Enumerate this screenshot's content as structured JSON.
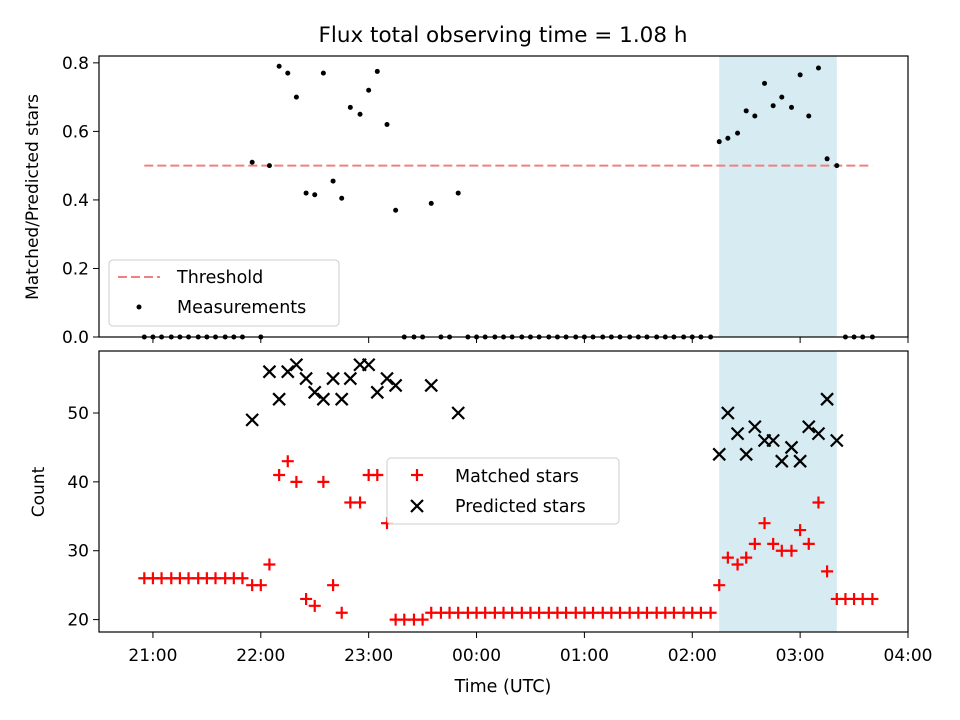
{
  "figure": {
    "title": "Flux total observing time = 1.08 h",
    "xlabel": "Time (UTC)",
    "x_ticks": [
      "21:00",
      "22:00",
      "23:00",
      "00:00",
      "01:00",
      "02:00",
      "03:00",
      "04:00"
    ]
  },
  "chart_data": [
    {
      "type": "scatter",
      "panel": "top",
      "title": "Flux total observing time = 1.08 h",
      "ylabel": "Matched/Predicted stars",
      "ylim": [
        0,
        0.82
      ],
      "y_ticks": [
        "0.0",
        "0.2",
        "0.4",
        "0.6",
        "0.8"
      ],
      "xlim_hours": [
        20.5,
        28.0
      ],
      "x_unit": "hours UTC (values above 24 are after midnight)",
      "highlight_span_hours": [
        26.25,
        27.34
      ],
      "highlight_color": "#add8e6",
      "threshold": {
        "name": "Threshold",
        "value": 0.5,
        "x_range_hours": [
          20.92,
          27.67
        ],
        "color": "#f08080",
        "style": "dashed"
      },
      "legend": {
        "placement": "lower-left",
        "entries": [
          "Threshold",
          "Measurements"
        ]
      },
      "series": [
        {
          "name": "Measurements",
          "color": "#000000",
          "marker": "dot",
          "x": [
            20.92,
            21.0,
            21.08,
            21.17,
            21.25,
            21.33,
            21.42,
            21.5,
            21.58,
            21.67,
            21.75,
            21.83,
            21.92,
            22.0,
            22.08,
            22.17,
            22.25,
            22.33,
            22.42,
            22.5,
            22.58,
            22.67,
            22.75,
            22.83,
            22.92,
            23.0,
            23.08,
            23.17,
            23.25,
            23.33,
            23.42,
            23.5,
            23.58,
            23.67,
            23.75,
            23.83,
            23.92,
            24.0,
            24.08,
            24.17,
            24.25,
            24.33,
            24.42,
            24.5,
            24.58,
            24.67,
            24.75,
            24.83,
            24.92,
            25.0,
            25.08,
            25.17,
            25.25,
            25.33,
            25.42,
            25.5,
            25.58,
            25.67,
            25.75,
            25.83,
            25.92,
            26.0,
            26.08,
            26.17,
            26.25,
            26.33,
            26.42,
            26.5,
            26.58,
            26.67,
            26.75,
            26.83,
            26.92,
            27.0,
            27.08,
            27.17,
            27.25,
            27.34,
            27.42,
            27.5,
            27.58,
            27.67
          ],
          "y": [
            0,
            0,
            0,
            0,
            0,
            0,
            0,
            0,
            0,
            0,
            0,
            0,
            0.51,
            0,
            0.5,
            0.79,
            0.77,
            0.7,
            0.42,
            0.415,
            0.77,
            0.455,
            0.405,
            0.67,
            0.65,
            0.72,
            0.775,
            0.62,
            0.37,
            0,
            0,
            0,
            0.39,
            0,
            0,
            0.42,
            0,
            0,
            0,
            0,
            0,
            0,
            0,
            0,
            0,
            0,
            0,
            0,
            0,
            0,
            0,
            0,
            0,
            0,
            0,
            0,
            0,
            0,
            0,
            0,
            0,
            0,
            0,
            0,
            0.57,
            0.58,
            0.595,
            0.66,
            0.645,
            0.74,
            0.675,
            0.7,
            0.67,
            0.765,
            0.645,
            0.785,
            0.52,
            0.5,
            0,
            0,
            0,
            0
          ]
        }
      ]
    },
    {
      "type": "scatter",
      "panel": "bottom",
      "xlabel": "Time (UTC)",
      "ylabel": "Count",
      "ylim": [
        18.2,
        59
      ],
      "y_ticks": [
        "20",
        "30",
        "40",
        "50"
      ],
      "xlim_hours": [
        20.5,
        28.0
      ],
      "highlight_span_hours": [
        26.25,
        27.34
      ],
      "highlight_color": "#add8e6",
      "legend": {
        "placement": "center",
        "entries": [
          "Matched stars",
          "Predicted stars"
        ]
      },
      "series": [
        {
          "name": "Matched stars",
          "color": "#ff0000",
          "marker": "plus",
          "x": [
            20.92,
            21.0,
            21.08,
            21.17,
            21.25,
            21.33,
            21.42,
            21.5,
            21.58,
            21.67,
            21.75,
            21.83,
            21.92,
            22.0,
            22.08,
            22.17,
            22.25,
            22.33,
            22.42,
            22.5,
            22.58,
            22.67,
            22.75,
            22.83,
            22.92,
            23.0,
            23.08,
            23.17,
            23.25,
            23.33,
            23.42,
            23.5,
            23.58,
            23.67,
            23.75,
            23.83,
            23.92,
            24.0,
            24.08,
            24.17,
            24.25,
            24.33,
            24.42,
            24.5,
            24.58,
            24.67,
            24.75,
            24.83,
            24.92,
            25.0,
            25.08,
            25.17,
            25.25,
            25.33,
            25.42,
            25.5,
            25.58,
            25.67,
            25.75,
            25.83,
            25.92,
            26.0,
            26.08,
            26.17,
            26.25,
            26.33,
            26.42,
            26.5,
            26.58,
            26.67,
            26.75,
            26.83,
            26.92,
            27.0,
            27.08,
            27.17,
            27.25,
            27.34,
            27.42,
            27.5,
            27.58,
            27.67
          ],
          "y": [
            26,
            26,
            26,
            26,
            26,
            26,
            26,
            26,
            26,
            26,
            26,
            26,
            25,
            25,
            28,
            41,
            43,
            40,
            23,
            22,
            40,
            25,
            21,
            37,
            37,
            41,
            41,
            34,
            20,
            20,
            20,
            20,
            21,
            21,
            21,
            21,
            21,
            21,
            21,
            21,
            21,
            21,
            21,
            21,
            21,
            21,
            21,
            21,
            21,
            21,
            21,
            21,
            21,
            21,
            21,
            21,
            21,
            21,
            21,
            21,
            21,
            21,
            21,
            21,
            25,
            29,
            28,
            29,
            31,
            34,
            31,
            30,
            30,
            33,
            31,
            37,
            27,
            23,
            23,
            23,
            23,
            23
          ]
        },
        {
          "name": "Predicted stars",
          "color": "#000000",
          "marker": "x",
          "x": [
            21.92,
            22.08,
            22.17,
            22.25,
            22.33,
            22.42,
            22.5,
            22.58,
            22.67,
            22.75,
            22.83,
            22.92,
            23.0,
            23.08,
            23.17,
            23.25,
            23.58,
            23.83,
            26.25,
            26.33,
            26.42,
            26.5,
            26.58,
            26.67,
            26.75,
            26.83,
            26.92,
            27.0,
            27.08,
            27.17,
            27.25,
            27.34
          ],
          "y": [
            49,
            56,
            52,
            56,
            57,
            55,
            53,
            52,
            55,
            52,
            55,
            57,
            57,
            53,
            55,
            54,
            54,
            50,
            44,
            50,
            47,
            44,
            48,
            46,
            46,
            43,
            45,
            43,
            48,
            47,
            52,
            46
          ]
        }
      ]
    }
  ]
}
